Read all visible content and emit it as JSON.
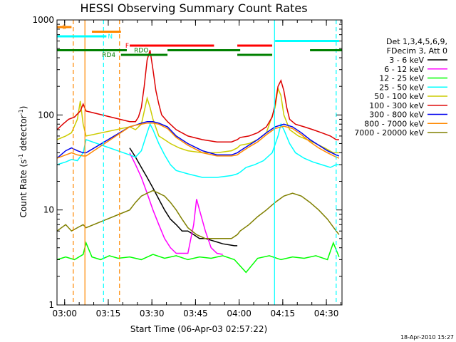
{
  "chart_data": {
    "type": "line",
    "title": "HESSI Observing Summary Count Rates",
    "xlabel": "Start Time (06-Apr-03 02:57:22)",
    "ylabel": "Count Rate (s⁻¹ detector⁻¹)",
    "ylabel_parts": {
      "base": "Count Rate (s",
      "exp1": "-1",
      "mid": " detector",
      "exp2": "-1",
      "end": ")"
    },
    "x_unit": "minutes since 02:57:22",
    "xlim": [
      0,
      98
    ],
    "ylim": [
      1,
      1000
    ],
    "y_scale": "log",
    "grid": false,
    "legend_position": "right",
    "xticks": [
      {
        "value": 2.63,
        "label": "03:00"
      },
      {
        "value": 17.63,
        "label": "03:15"
      },
      {
        "value": 32.63,
        "label": "03:30"
      },
      {
        "value": 47.63,
        "label": "03:45"
      },
      {
        "value": 62.63,
        "label": "04:00"
      },
      {
        "value": 77.63,
        "label": "04:15"
      },
      {
        "value": 92.63,
        "label": "04:30"
      }
    ],
    "yticks": [
      {
        "value": 1,
        "label": "1"
      },
      {
        "value": 10,
        "label": "10"
      },
      {
        "value": 100,
        "label": "100"
      },
      {
        "value": 1000,
        "label": "1000"
      }
    ],
    "legend_header": [
      "Det 1,3,4,5,6,9,",
      "FDecim 3, Att 0"
    ],
    "series": [
      {
        "name": "3 - 6 keV",
        "color": "#000000",
        "x": [
          25,
          27,
          29,
          31,
          33,
          35,
          37,
          39,
          41,
          43,
          45,
          47,
          49,
          51,
          53,
          55,
          57,
          59,
          61,
          62
        ],
        "y": [
          45,
          36,
          28,
          22,
          17,
          13,
          10,
          8,
          7,
          6,
          6,
          5.5,
          5,
          5,
          4.8,
          4.6,
          4.4,
          4.3,
          4.2,
          4.2
        ]
      },
      {
        "name": "6 - 12 keV",
        "color": "#ff00ff",
        "x": [
          25,
          27,
          29,
          31,
          33,
          35,
          37,
          39,
          41,
          43,
          45,
          47,
          48,
          49,
          51,
          53,
          55,
          57
        ],
        "y": [
          40,
          30,
          22,
          15,
          10,
          7,
          5,
          4,
          3.5,
          3.5,
          3.5,
          7,
          13,
          10,
          6,
          4,
          3.5,
          3.4
        ]
      },
      {
        "name": "12 - 25 keV",
        "color": "#00ff00",
        "x": [
          0,
          3,
          6,
          9,
          10,
          12,
          15,
          18,
          21,
          25,
          29,
          33,
          37,
          41,
          45,
          49,
          53,
          57,
          61,
          65,
          69,
          73,
          77,
          81,
          85,
          89,
          93,
          95,
          97
        ],
        "y": [
          3,
          3.2,
          3.0,
          3.4,
          4.5,
          3.2,
          3.0,
          3.3,
          3.1,
          3.2,
          3.0,
          3.4,
          3.1,
          3.3,
          3.0,
          3.2,
          3.1,
          3.3,
          3.0,
          2.2,
          3.1,
          3.3,
          3.0,
          3.2,
          3.1,
          3.3,
          3.0,
          4.5,
          3.2
        ]
      },
      {
        "name": "25 - 50 keV",
        "color": "#00ffff",
        "x": [
          0,
          3,
          5,
          7,
          9,
          10,
          25,
          27,
          29,
          31,
          32,
          33,
          35,
          37,
          39,
          41,
          45,
          50,
          55,
          60,
          62,
          63,
          65,
          68,
          71,
          74,
          76,
          77,
          78,
          80,
          82,
          85,
          88,
          91,
          94,
          96,
          97
        ],
        "y": [
          30,
          32,
          34,
          33,
          40,
          55,
          38,
          36,
          42,
          65,
          80,
          70,
          50,
          38,
          30,
          26,
          24,
          22,
          22,
          23,
          24,
          25,
          28,
          30,
          33,
          40,
          60,
          80,
          70,
          50,
          40,
          35,
          32,
          30,
          28,
          30,
          30
        ]
      },
      {
        "name": "50 - 100 keV",
        "color": "#cccc00",
        "x": [
          0,
          3,
          5,
          7,
          8,
          9,
          10,
          25,
          27,
          29,
          31,
          32,
          33,
          35,
          37,
          39,
          42,
          45,
          50,
          55,
          60,
          62,
          63,
          66,
          69,
          72,
          75,
          76,
          77,
          78,
          80,
          83,
          86,
          89,
          92,
          95,
          97
        ],
        "y": [
          55,
          60,
          65,
          90,
          140,
          80,
          60,
          75,
          70,
          80,
          150,
          120,
          90,
          60,
          55,
          50,
          45,
          42,
          40,
          40,
          42,
          45,
          48,
          50,
          55,
          65,
          120,
          190,
          160,
          100,
          70,
          60,
          55,
          50,
          45,
          40,
          40
        ]
      },
      {
        "name": "100 - 300 keV",
        "color": "#dd0000",
        "x": [
          0,
          2,
          4,
          6,
          8,
          9,
          10,
          25,
          27,
          28,
          29,
          30,
          31,
          32,
          33,
          34,
          35,
          36,
          38,
          41,
          45,
          50,
          55,
          60,
          62,
          63,
          66,
          69,
          72,
          74,
          75,
          76,
          77,
          78,
          79,
          80,
          82,
          85,
          88,
          91,
          94,
          96,
          97
        ],
        "y": [
          70,
          80,
          90,
          95,
          110,
          130,
          110,
          85,
          85,
          95,
          120,
          200,
          380,
          480,
          300,
          180,
          130,
          100,
          85,
          70,
          60,
          55,
          52,
          52,
          55,
          58,
          60,
          65,
          75,
          95,
          130,
          200,
          230,
          180,
          120,
          90,
          80,
          75,
          70,
          65,
          60,
          55,
          55
        ]
      },
      {
        "name": "300 - 800 keV",
        "color": "#0000ee",
        "x": [
          0,
          3,
          5,
          7,
          9,
          10,
          25,
          27,
          29,
          31,
          33,
          35,
          38,
          41,
          45,
          50,
          55,
          60,
          62,
          63,
          66,
          69,
          72,
          75,
          78,
          81,
          84,
          87,
          90,
          93,
          96,
          97
        ],
        "y": [
          35,
          42,
          45,
          42,
          40,
          40,
          75,
          78,
          82,
          85,
          85,
          82,
          75,
          60,
          50,
          42,
          38,
          38,
          40,
          42,
          48,
          55,
          65,
          75,
          80,
          75,
          65,
          55,
          48,
          42,
          38,
          37
        ]
      },
      {
        "name": "800 - 7000 keV",
        "color": "#ff8800",
        "x": [
          0,
          3,
          5,
          7,
          9,
          10,
          25,
          27,
          29,
          31,
          33,
          35,
          38,
          41,
          45,
          50,
          55,
          60,
          62,
          63,
          66,
          69,
          72,
          75,
          78,
          81,
          84,
          87,
          90,
          93,
          96,
          97
        ],
        "y": [
          35,
          38,
          40,
          38,
          37,
          37,
          75,
          78,
          80,
          82,
          82,
          80,
          72,
          58,
          48,
          40,
          37,
          37,
          38,
          40,
          46,
          52,
          62,
          72,
          76,
          72,
          62,
          52,
          45,
          40,
          36,
          35
        ]
      },
      {
        "name": "7000 - 20000 keV",
        "color": "#808000",
        "x": [
          0,
          3,
          5,
          7,
          9,
          10,
          25,
          27,
          29,
          31,
          33,
          35,
          37,
          39,
          41,
          43,
          45,
          48,
          51,
          54,
          57,
          60,
          62,
          63,
          66,
          69,
          72,
          75,
          78,
          81,
          84,
          87,
          90,
          93,
          96,
          97
        ],
        "y": [
          6,
          7,
          6,
          6.5,
          7,
          6.5,
          10,
          12,
          14,
          15,
          16,
          15,
          14,
          12,
          10,
          8,
          6.5,
          5.5,
          5,
          5,
          5,
          5,
          5.5,
          6,
          7,
          8.5,
          10,
          12,
          14,
          15,
          14,
          12,
          10,
          8,
          6,
          5.5
        ]
      }
    ],
    "flag_bars": [
      {
        "label": "S",
        "color": "#ff8800",
        "label_x": 1.8,
        "segments": [
          [
            0,
            5
          ]
        ]
      },
      {
        "label": "",
        "color": "#ff8800",
        "label_x": null,
        "segments": [
          [
            12,
            22
          ]
        ]
      },
      {
        "label": "N",
        "color": "#00ffff",
        "label_x": 17.5,
        "segments": [
          [
            0,
            17
          ]
        ]
      },
      {
        "label": "",
        "color": "#00ffff",
        "label_x": null,
        "segments": [
          [
            75,
            97
          ]
        ]
      },
      {
        "label": "F",
        "color": "#ff0000",
        "label_x": 23.5,
        "segments": [
          [
            25,
            54
          ],
          [
            62,
            74
          ]
        ]
      },
      {
        "label": "RDO",
        "color": "#008000",
        "label_x": 26.5,
        "segments": [
          [
            0,
            24
          ],
          [
            38,
            63
          ],
          [
            87,
            98
          ]
        ]
      },
      {
        "label": "RD4",
        "color": "#008000",
        "label_x": 15.5,
        "segments": [
          [
            22,
            38
          ],
          [
            62,
            74
          ]
        ]
      }
    ],
    "vlines": [
      {
        "x": 5.6,
        "color": "#ff8800",
        "style": "dashed"
      },
      {
        "x": 9.6,
        "color": "#ff8800",
        "style": "solid"
      },
      {
        "x": 16.0,
        "color": "#00ffff",
        "style": "dashed"
      },
      {
        "x": 21.5,
        "color": "#ff8800",
        "style": "dashed"
      },
      {
        "x": 74.8,
        "color": "#00ffff",
        "style": "solid"
      },
      {
        "x": 96.0,
        "color": "#00ffff",
        "style": "dashed"
      }
    ],
    "footer_text": "18-Apr-2010 15:27"
  }
}
